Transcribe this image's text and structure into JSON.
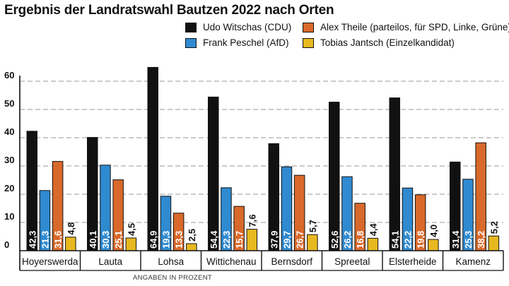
{
  "chart_data": {
    "type": "bar",
    "title": "Ergebnis der Landratswahl Bautzen 2022 nach Orten",
    "xlabel": "",
    "ylabel": "",
    "ylim": [
      0,
      60
    ],
    "yticks": [
      0,
      10,
      20,
      30,
      40,
      50,
      60
    ],
    "categories": [
      "Hoyerswerda",
      "Lauta",
      "Lohsa",
      "Wittichenau",
      "Bernsdorf",
      "Spreetal",
      "Elsterheide",
      "Kamenz"
    ],
    "series": [
      {
        "name": "Udo Witschas (CDU)",
        "color": "#111111",
        "values": [
          42.3,
          40.1,
          64.9,
          54.4,
          37.9,
          52.6,
          54.1,
          31.4
        ],
        "labels": [
          "42,3",
          "40,1",
          "64,9",
          "54,4",
          "37,9",
          "52,6",
          "54,1",
          "31,4"
        ]
      },
      {
        "name": "Frank Peschel (AfD)",
        "color": "#2f8ad0",
        "values": [
          21.3,
          30.3,
          19.3,
          22.3,
          29.7,
          26.2,
          22.2,
          25.3
        ],
        "labels": [
          "21,3",
          "30,3",
          "19,3",
          "22,3",
          "29,7",
          "26,2",
          "22,2",
          "25,3"
        ]
      },
      {
        "name": "Alex Theile (parteilos, für SPD, Linke, Grüne)",
        "color": "#d9692a",
        "values": [
          31.6,
          25.1,
          13.3,
          15.7,
          26.7,
          16.8,
          19.8,
          38.2
        ],
        "labels": [
          "31,6",
          "25,1",
          "13,3",
          "15,7",
          "26,7",
          "16,8",
          "19,8",
          "38,2"
        ]
      },
      {
        "name": "Tobias Jantsch (Einzelkandidat)",
        "color": "#e8b820",
        "values": [
          4.8,
          4.5,
          2.5,
          7.6,
          5.7,
          4.4,
          4.0,
          5.2
        ],
        "labels": [
          "4,8",
          "4,5",
          "2,5",
          "7,6",
          "5,7",
          "4,4",
          "4,0",
          "5,2"
        ]
      }
    ],
    "legend_position": "top-right",
    "grid": true,
    "note": "ANGABEN IN PROZENT"
  }
}
